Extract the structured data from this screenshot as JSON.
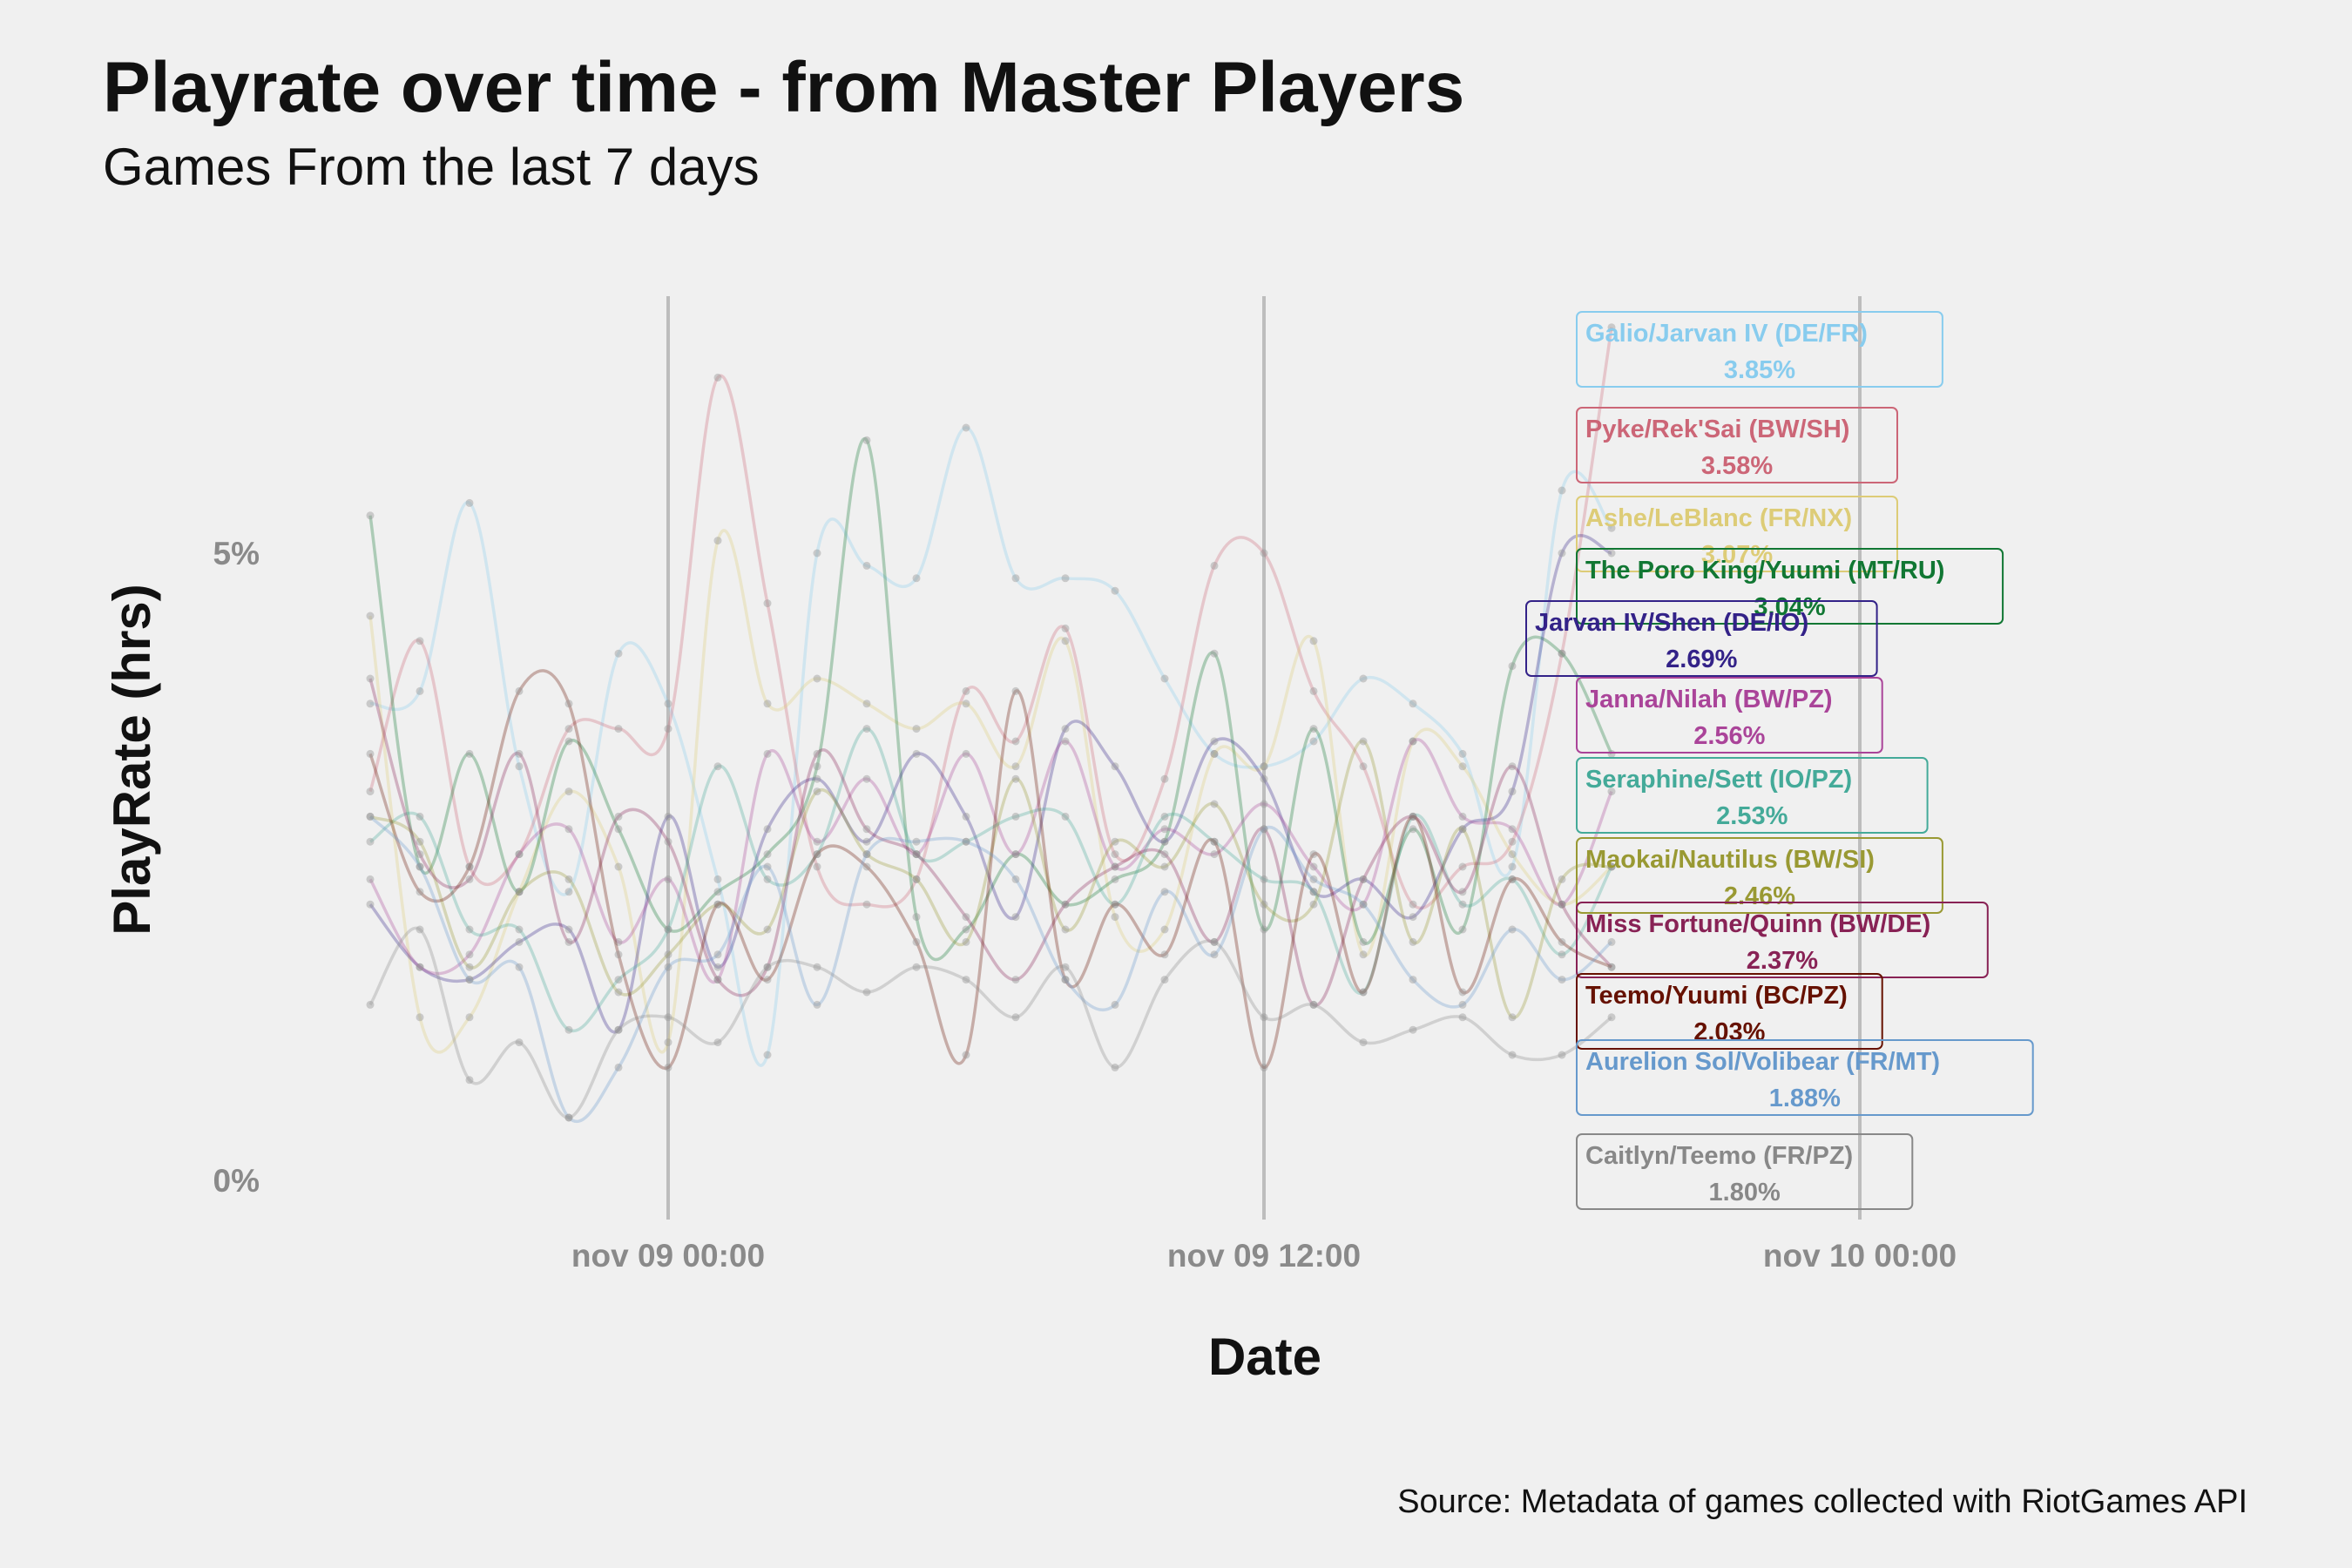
{
  "chart_data": {
    "type": "line",
    "title": "Playrate over time - from Master Players",
    "subtitle": "Games From the last 7 days",
    "xlabel": "Date",
    "ylabel": "PlayRate (hrs)",
    "caption": "Source: Metadata of games collected with RiotGames API",
    "x_ticks": [
      "nov 09 00:00",
      "nov 09 12:00",
      "nov 10 00:00"
    ],
    "y_ticks": [
      "0%",
      "5%"
    ],
    "y_tick_values": [
      0,
      5
    ],
    "ylim": [
      -0.3,
      7.1
    ],
    "grid": "vertical major lines only",
    "time_points": [
      "nov 08 18:00",
      "nov 08 19:00",
      "nov 08 20:00",
      "nov 08 21:00",
      "nov 08 22:00",
      "nov 08 23:00",
      "nov 09 00:00",
      "nov 09 01:00",
      "nov 09 02:00",
      "nov 09 03:00",
      "nov 09 04:00",
      "nov 09 05:00",
      "nov 09 06:00",
      "nov 09 07:00",
      "nov 09 08:00",
      "nov 09 09:00",
      "nov 09 10:00",
      "nov 09 11:00",
      "nov 09 12:00",
      "nov 09 13:00",
      "nov 09 14:00",
      "nov 09 15:00",
      "nov 09 16:00",
      "nov 09 17:00",
      "nov 09 18:00",
      "nov 09 19:00"
    ],
    "series": [
      {
        "name": "Galio/Jarvan IV (DE/FR)",
        "last_value_label": "3.85%",
        "color": "#88ccee",
        "values": [
          3.8,
          3.9,
          5.4,
          3.3,
          2.3,
          4.2,
          3.8,
          2.4,
          1.0,
          5.0,
          4.9,
          4.8,
          6.0,
          4.8,
          4.8,
          4.7,
          4.0,
          3.4,
          3.3,
          3.5,
          4.0,
          3.8,
          3.4,
          2.5,
          5.5,
          5.2
        ]
      },
      {
        "name": "Pyke/Rek'Sai (BW/SH)",
        "last_value_label": "3.58%",
        "color": "#cc6677",
        "values": [
          3.1,
          4.3,
          2.5,
          2.6,
          3.6,
          3.6,
          3.6,
          6.4,
          4.6,
          2.5,
          2.2,
          2.4,
          3.9,
          3.5,
          4.4,
          2.6,
          3.2,
          4.9,
          5.0,
          3.9,
          3.3,
          2.2,
          2.5,
          2.7,
          4.2,
          6.8
        ]
      },
      {
        "name": "Ashe/LeBlanc (FR/NX)",
        "last_value_label": "3.07%",
        "color": "#ddcc77",
        "values": [
          4.5,
          1.3,
          1.3,
          2.3,
          3.1,
          2.5,
          1.1,
          5.1,
          3.8,
          4.0,
          3.8,
          3.6,
          3.8,
          3.3,
          4.3,
          2.1,
          2.0,
          3.4,
          3.3,
          4.3,
          1.8,
          3.5,
          3.3,
          2.6,
          2.2,
          2.5
        ]
      },
      {
        "name": "The Poro King/Yuumi (MT/RU)",
        "last_value_label": "3.04%",
        "color": "#117733",
        "values": [
          5.3,
          2.5,
          3.4,
          2.3,
          3.5,
          2.8,
          2.0,
          2.3,
          2.6,
          3.3,
          5.9,
          2.1,
          2.0,
          2.6,
          2.2,
          2.4,
          2.7,
          4.2,
          2.0,
          3.6,
          1.9,
          2.8,
          2.0,
          4.1,
          4.2,
          3.4
        ]
      },
      {
        "name": "Jarvan IV/Shen (DE/IO)",
        "last_value_label": "2.69%",
        "color": "#332288",
        "values": [
          2.2,
          1.7,
          1.6,
          1.9,
          2.0,
          1.2,
          2.9,
          1.7,
          2.8,
          3.2,
          2.7,
          3.4,
          2.9,
          2.1,
          3.6,
          3.3,
          2.7,
          3.5,
          3.2,
          2.3,
          2.4,
          2.1,
          2.8,
          3.1,
          5.0,
          5.0
        ]
      },
      {
        "name": "Janna/Nilah (BW/PZ)",
        "last_value_label": "2.56%",
        "color": "#aa4499",
        "values": [
          2.4,
          1.7,
          1.8,
          2.6,
          2.8,
          1.9,
          2.4,
          1.6,
          3.4,
          2.7,
          3.2,
          2.6,
          3.4,
          2.6,
          3.5,
          2.5,
          2.8,
          2.6,
          3.0,
          2.5,
          2.2,
          3.5,
          2.9,
          2.8,
          2.2,
          3.1
        ]
      },
      {
        "name": "Seraphine/Sett (IO/PZ)",
        "last_value_label": "2.53%",
        "color": "#44aa99",
        "values": [
          2.7,
          2.9,
          2.0,
          2.0,
          1.2,
          1.6,
          2.0,
          3.3,
          2.4,
          2.6,
          3.6,
          2.6,
          2.7,
          2.9,
          2.9,
          2.2,
          2.9,
          2.7,
          2.4,
          2.3,
          1.5,
          2.9,
          2.2,
          2.4,
          1.8,
          2.5
        ]
      },
      {
        "name": "Maokai/Nautilus (BW/SI)",
        "last_value_label": "2.46%",
        "color": "#999933",
        "values": [
          2.9,
          2.7,
          1.7,
          2.3,
          2.4,
          1.5,
          1.8,
          2.2,
          2.0,
          3.1,
          2.6,
          2.4,
          1.9,
          3.2,
          2.0,
          2.7,
          2.5,
          3.0,
          2.2,
          2.2,
          3.5,
          1.9,
          2.8,
          1.3,
          2.4,
          2.5
        ]
      },
      {
        "name": "Miss Fortune/Quinn (BW/DE)",
        "last_value_label": "2.37%",
        "color": "#882255",
        "values": [
          4.0,
          2.6,
          2.4,
          3.4,
          1.9,
          2.9,
          2.7,
          1.6,
          1.7,
          3.4,
          2.8,
          2.6,
          2.1,
          1.6,
          2.2,
          2.5,
          2.6,
          1.9,
          2.8,
          1.4,
          2.4,
          2.9,
          2.3,
          3.3,
          2.2,
          1.7
        ]
      },
      {
        "name": "Teemo/Yuumi (BC/PZ)",
        "last_value_label": "2.03%",
        "color": "#661100",
        "values": [
          3.4,
          2.3,
          2.5,
          3.9,
          3.8,
          1.8,
          0.9,
          2.2,
          1.6,
          2.6,
          2.5,
          1.9,
          1.0,
          3.9,
          1.6,
          2.2,
          1.8,
          2.7,
          0.9,
          2.6,
          1.5,
          2.9,
          1.5,
          2.4,
          1.9,
          1.7
        ]
      },
      {
        "name": "Aurelion Sol/Volibear (FR/MT)",
        "last_value_label": "1.88%",
        "color": "#6699cc",
        "values": [
          2.9,
          2.5,
          1.6,
          1.7,
          0.5,
          0.9,
          1.7,
          1.8,
          2.5,
          1.4,
          2.6,
          2.7,
          2.7,
          2.4,
          1.6,
          1.4,
          2.3,
          1.8,
          2.8,
          2.4,
          2.2,
          1.6,
          1.4,
          2.0,
          1.6,
          1.9
        ]
      },
      {
        "name": "Caitlyn/Teemo (FR/PZ)",
        "last_value_label": "1.80%",
        "color": "#888888",
        "values": [
          1.4,
          2.0,
          0.8,
          1.1,
          0.5,
          1.2,
          1.3,
          1.1,
          1.7,
          1.7,
          1.5,
          1.7,
          1.6,
          1.3,
          1.7,
          0.9,
          1.6,
          1.9,
          1.3,
          1.4,
          1.1,
          1.2,
          1.3,
          1.0,
          1.0,
          1.3
        ]
      }
    ]
  }
}
